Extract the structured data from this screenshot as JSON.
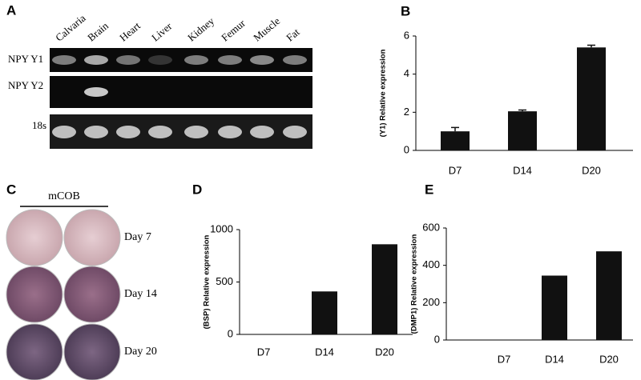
{
  "gel_panel": {
    "panel": "A",
    "lanes": [
      "Calvaria",
      "Brain",
      "Heart",
      "Liver",
      "Kidney",
      "Femur",
      "Muscle",
      "Fat"
    ],
    "rows": [
      "NPY Y1",
      "NPY Y2",
      "18s"
    ]
  },
  "wells_panel": {
    "panel": "C",
    "group": "mCOB",
    "days": [
      "Day 7",
      "Day 14",
      "Day 20"
    ]
  },
  "chart_data": [
    {
      "type": "bar",
      "panel": "B",
      "ylabel": "(Y1) Relative expression",
      "categories": [
        "D7",
        "D14",
        "D20"
      ],
      "values": [
        1.0,
        2.05,
        5.4
      ],
      "errors": [
        0.2,
        0.07,
        0.12
      ],
      "color": "#111111",
      "ylim": [
        0,
        6
      ],
      "yticks": [
        0,
        2,
        4,
        6
      ]
    },
    {
      "type": "bar",
      "panel": "D",
      "ylabel": "(BSP) Relative expression",
      "categories": [
        "D7",
        "D14",
        "D20"
      ],
      "values": [
        0,
        410,
        860
      ],
      "color": "#111111",
      "ylim": [
        0,
        1000
      ],
      "yticks": [
        0,
        500,
        1000
      ]
    },
    {
      "type": "bar",
      "panel": "E",
      "ylabel": "(DMP1) Relative expression",
      "categories": [
        "D7",
        "D14",
        "D20"
      ],
      "values": [
        0,
        345,
        475
      ],
      "color": "#111111",
      "ylim": [
        0,
        600
      ],
      "yticks": [
        0,
        200,
        400,
        600
      ]
    }
  ]
}
